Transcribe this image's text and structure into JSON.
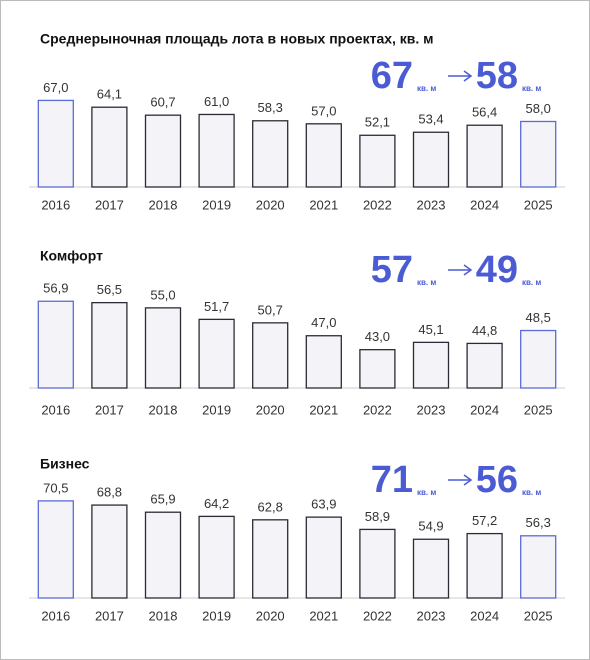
{
  "chart_data": [
    {
      "type": "bar",
      "title": "Среднерыночная площадь лота в новых проектах, кв. м",
      "categories": [
        "2016",
        "2017",
        "2018",
        "2019",
        "2020",
        "2021",
        "2022",
        "2023",
        "2024",
        "2025"
      ],
      "values": [
        67.0,
        64.1,
        60.7,
        61.0,
        58.3,
        57.0,
        52.1,
        53.4,
        56.4,
        58.0
      ],
      "value_labels": [
        "67,0",
        "64,1",
        "60,7",
        "61,0",
        "58,3",
        "57,0",
        "52,1",
        "53,4",
        "56,4",
        "58,0"
      ],
      "colors": [
        "#5b6bd6",
        "#2b2b35",
        "#2b2b35",
        "#2b2b35",
        "#2b2b35",
        "#2b2b35",
        "#2b2b35",
        "#2b2b35",
        "#2b2b35",
        "#5b6bd6"
      ],
      "ylim": [
        30,
        80
      ],
      "annotation": {
        "from": 67,
        "from_unit": "кв. м",
        "to": 58,
        "to_unit": "кв. м",
        "color": "#4a5bd4"
      }
    },
    {
      "type": "bar",
      "title": "Комфорт",
      "categories": [
        "2016",
        "2017",
        "2018",
        "2019",
        "2020",
        "2021",
        "2022",
        "2023",
        "2024",
        "2025"
      ],
      "values": [
        56.9,
        56.5,
        55.0,
        51.7,
        50.7,
        47.0,
        43.0,
        45.1,
        44.8,
        48.5
      ],
      "value_labels": [
        "56,9",
        "56,5",
        "55,0",
        "51,7",
        "50,7",
        "47,0",
        "43,0",
        "45,1",
        "44,8",
        "48,5"
      ],
      "colors": [
        "#5b6bd6",
        "#2b2b35",
        "#2b2b35",
        "#2b2b35",
        "#2b2b35",
        "#2b2b35",
        "#2b2b35",
        "#2b2b35",
        "#2b2b35",
        "#5b6bd6"
      ],
      "ylim": [
        32,
        63
      ],
      "annotation": {
        "from": 57,
        "from_unit": "кв. м",
        "to": 49,
        "to_unit": "кв. м",
        "color": "#4a5bd4"
      }
    },
    {
      "type": "bar",
      "title": "Бизнес",
      "categories": [
        "2016",
        "2017",
        "2018",
        "2019",
        "2020",
        "2021",
        "2022",
        "2023",
        "2024",
        "2025"
      ],
      "values": [
        70.5,
        68.8,
        65.9,
        64.2,
        62.8,
        63.9,
        58.9,
        54.9,
        57.2,
        56.3
      ],
      "value_labels": [
        "70,5",
        "68,8",
        "65,9",
        "64,2",
        "62,8",
        "63,9",
        "58,9",
        "54,9",
        "57,2",
        "56,3"
      ],
      "colors": [
        "#5b6bd6",
        "#2b2b35",
        "#2b2b35",
        "#2b2b35",
        "#2b2b35",
        "#2b2b35",
        "#2b2b35",
        "#2b2b35",
        "#2b2b35",
        "#5b6bd6"
      ],
      "ylim": [
        31,
        79
      ],
      "annotation": {
        "from": 71,
        "from_unit": "кв. м",
        "to": 56,
        "to_unit": "кв. м",
        "color": "#4a5bd4"
      }
    }
  ]
}
